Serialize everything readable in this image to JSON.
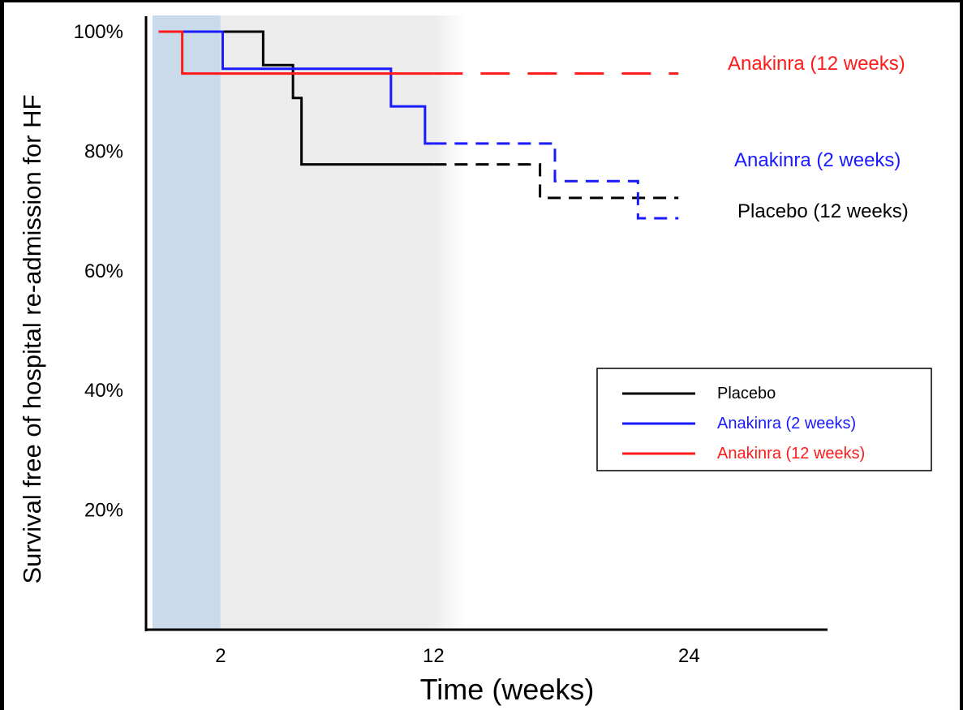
{
  "chart_data": {
    "type": "line",
    "xlabel": "Time (weeks)",
    "ylabel": "Survival free of hospital re-admission for HF",
    "x_ticks": [
      {
        "value": 2,
        "label": "2"
      },
      {
        "value": 12,
        "label": "12"
      },
      {
        "value": 24,
        "label": "24"
      }
    ],
    "y_ticks": [
      {
        "value": 20,
        "label": "20%"
      },
      {
        "value": 40,
        "label": "40%"
      },
      {
        "value": 60,
        "label": "60%"
      },
      {
        "value": 80,
        "label": "80%"
      },
      {
        "value": 100,
        "label": "100%"
      }
    ],
    "xlim": [
      -1.5,
      30.5
    ],
    "ylim": [
      0,
      100
    ],
    "grid": false,
    "shaded_periods": [
      {
        "from": -1.2,
        "to": 2,
        "color": "#c9daea"
      },
      {
        "from": 2,
        "to": 12,
        "color": "#ececec"
      }
    ],
    "treatment_end_weeks": 12,
    "series": [
      {
        "name": "Placebo",
        "color": "#000000",
        "end_label": "Placebo (12 weeks)",
        "steps": [
          [
            -0.9,
            100
          ],
          [
            4,
            100
          ],
          [
            4,
            94.4
          ],
          [
            5.4,
            94.4
          ],
          [
            5.4,
            88.9
          ],
          [
            5.8,
            88.9
          ],
          [
            5.8,
            77.8
          ],
          [
            17,
            77.8
          ],
          [
            17,
            72.2
          ],
          [
            23.5,
            72.2
          ]
        ]
      },
      {
        "name": "Anakinra (2 weeks)",
        "color": "#1a1aff",
        "end_label": "Anakinra (2 weeks)",
        "steps": [
          [
            -0.9,
            100
          ],
          [
            2.1,
            100
          ],
          [
            2.1,
            93.8
          ],
          [
            10,
            93.8
          ],
          [
            10,
            87.5
          ],
          [
            11.6,
            87.5
          ],
          [
            11.6,
            81.3
          ],
          [
            17.7,
            81.3
          ],
          [
            17.7,
            75
          ],
          [
            21.6,
            75
          ],
          [
            21.6,
            68.8
          ],
          [
            23.5,
            68.8
          ]
        ]
      },
      {
        "name": "Anakinra (12 weeks)",
        "color": "#ff1a1a",
        "end_label": "Anakinra (12 weeks)",
        "steps": [
          [
            -0.9,
            100
          ],
          [
            0.2,
            100
          ],
          [
            0.2,
            93
          ],
          [
            23.5,
            93
          ]
        ]
      }
    ],
    "legend": {
      "position": "right",
      "entries": [
        "Placebo",
        "Anakinra (2 weeks)",
        "Anakinra (12 weeks)"
      ]
    }
  }
}
